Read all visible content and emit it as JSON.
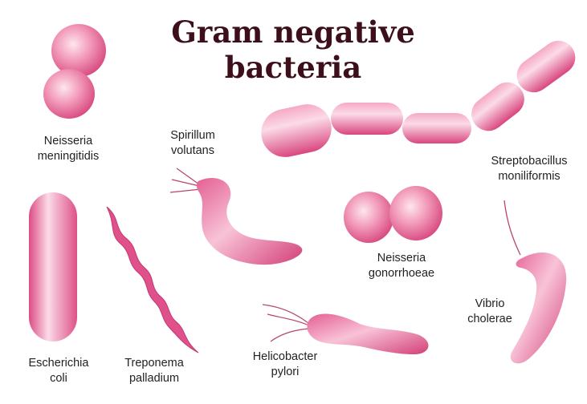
{
  "title": {
    "line1": "Gram negative",
    "line2": "bacteria"
  },
  "colors": {
    "cell_light": "#fbd6e4",
    "cell_mid": "#f28fb4",
    "cell_dark": "#d9457e",
    "flagellum": "#b8436e",
    "title": "#3d0f1a",
    "label": "#222222"
  },
  "bacteria": [
    {
      "id": "neisseria-meningitidis",
      "name_line1": "Neisseria",
      "name_line2": "meningitidis"
    },
    {
      "id": "spirillum-volutans",
      "name_line1": "Spirillum",
      "name_line2": "volutans"
    },
    {
      "id": "streptobacillus-moniliformis",
      "name_line1": "Streptobacillus",
      "name_line2": "moniliformis"
    },
    {
      "id": "neisseria-gonorrhoeae",
      "name_line1": "Neisseria",
      "name_line2": "gonorrhoeae"
    },
    {
      "id": "vibrio-cholerae",
      "name_line1": "Vibrio",
      "name_line2": "cholerae"
    },
    {
      "id": "escherichia-coli",
      "name_line1": "Escherichia",
      "name_line2": "coli"
    },
    {
      "id": "treponema-palladium",
      "name_line1": "Treponema",
      "name_line2": "palladium"
    },
    {
      "id": "helicobacter-pylori",
      "name_line1": "Helicobacter",
      "name_line2": "pylori"
    }
  ]
}
